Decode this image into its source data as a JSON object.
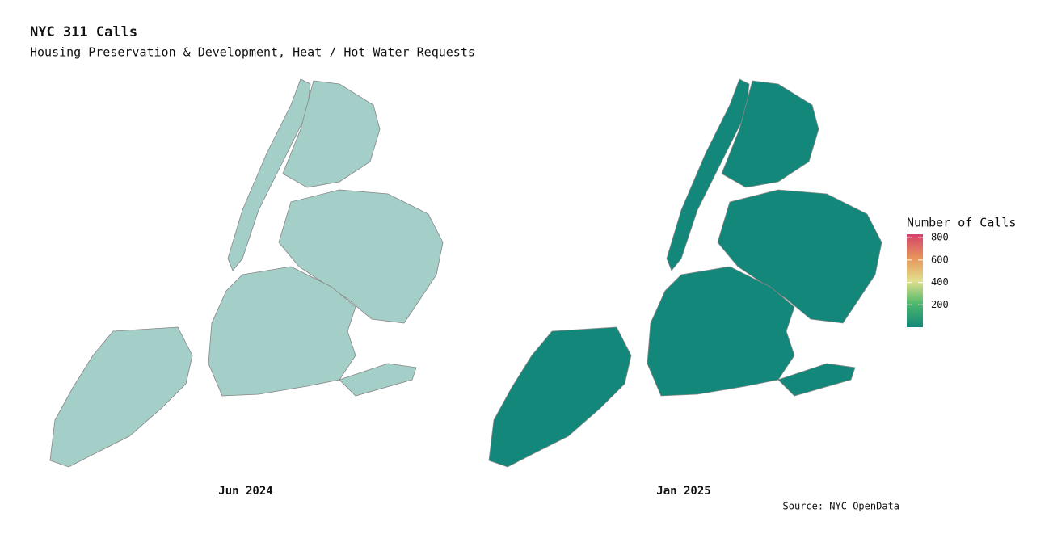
{
  "header": {
    "title": "NYC 311 Calls",
    "subtitle": "Housing Preservation & Development, Heat / Hot Water Requests"
  },
  "panels": [
    {
      "label": "Jun 2024"
    },
    {
      "label": "Jan 2025"
    }
  ],
  "legend": {
    "title": "Number of Calls",
    "range": [
      0,
      830
    ],
    "ticks": [
      200,
      400,
      600,
      800
    ],
    "colors": [
      "#12877a",
      "#4db86c",
      "#e3df8c",
      "#e8935c",
      "#d3436b"
    ]
  },
  "source": "Source: NYC OpenData"
}
